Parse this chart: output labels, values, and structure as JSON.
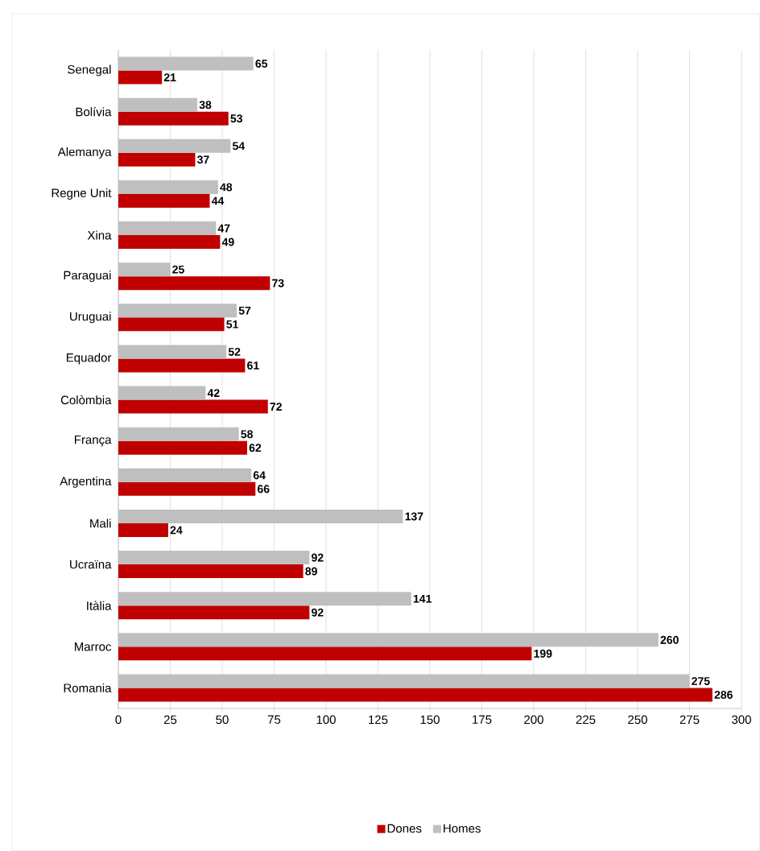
{
  "chart_data": {
    "type": "bar",
    "orientation": "horizontal",
    "categories": [
      "Senegal",
      "Bolívia",
      "Alemanya",
      "Regne Unit",
      "Xina",
      "Paraguai",
      "Uruguai",
      "Equador",
      "Colòmbia",
      "França",
      "Argentina",
      "Mali",
      "Ucraïna",
      "Itàlia",
      "Marroc",
      "Romania"
    ],
    "series": [
      {
        "name": "Dones",
        "color": "#c00000",
        "values": [
          21,
          53,
          37,
          44,
          49,
          73,
          51,
          61,
          72,
          62,
          66,
          24,
          89,
          92,
          199,
          286
        ]
      },
      {
        "name": "Homes",
        "color": "#bfbfbf",
        "values": [
          65,
          38,
          54,
          48,
          47,
          25,
          57,
          52,
          42,
          58,
          64,
          137,
          92,
          141,
          260,
          275
        ]
      }
    ],
    "xlim": [
      0,
      300
    ],
    "xticks": [
      0,
      25,
      50,
      75,
      100,
      125,
      150,
      175,
      200,
      225,
      250,
      275,
      300
    ],
    "grid": "x",
    "legend": "bottom",
    "data_labels": true
  }
}
